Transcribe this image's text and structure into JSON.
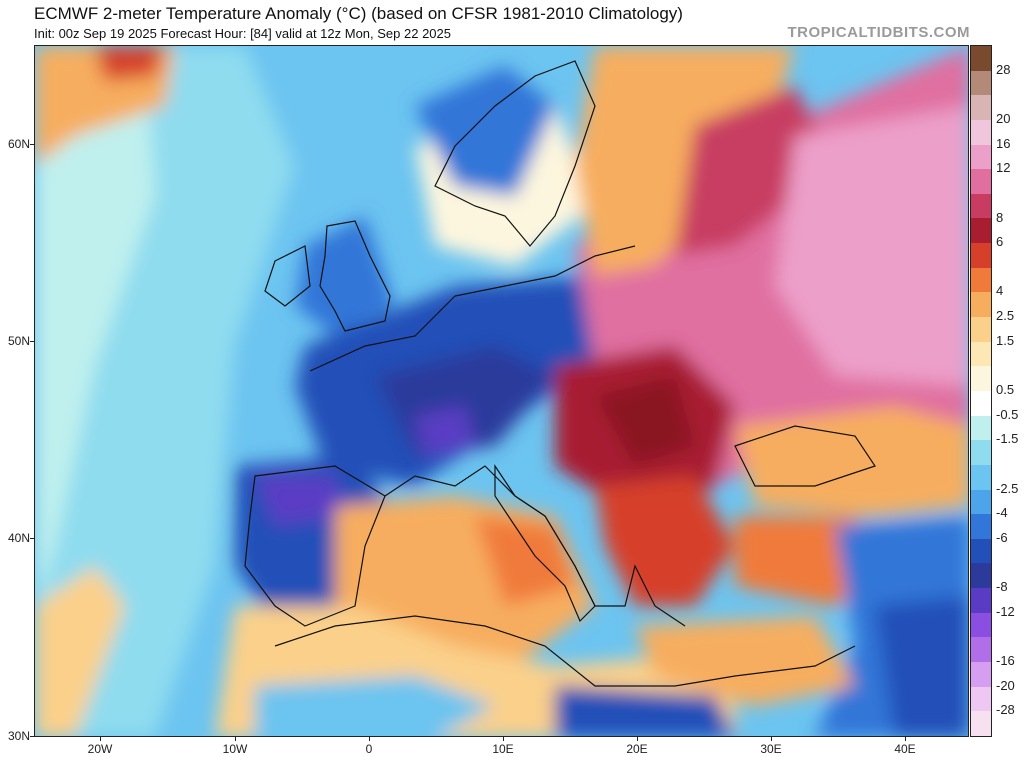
{
  "title": "ECMWF 2-meter Temperature Anomaly (°C) (based on CFSR 1981-2010 Climatology)",
  "subtitle": "Init: 00z Sep 19 2025   Forecast Hour: [84]   valid at 12z Mon, Sep 22 2025",
  "watermark": "TROPICALTIDBITS.COM",
  "map": {
    "lat_labels": [
      "60N",
      "50N",
      "40N",
      "30N"
    ],
    "lon_labels": [
      "20W",
      "10W",
      "0",
      "10E",
      "20E",
      "30E",
      "40E"
    ]
  },
  "colorbar": {
    "labels": [
      "28",
      "20",
      "16",
      "12",
      "8",
      "6",
      "4",
      "2.5",
      "1.5",
      "0.5",
      "-0.5",
      "-1.5",
      "-2.5",
      "-4",
      "-6",
      "-8",
      "-12",
      "-16",
      "-20",
      "-28"
    ],
    "colors": [
      "#7a4a2e",
      "#b38a78",
      "#d9b4b4",
      "#f0c6dc",
      "#ec9fc9",
      "#e06fa0",
      "#c83c62",
      "#a81e30",
      "#d6402a",
      "#f07a3a",
      "#f7ad5e",
      "#fbd08a",
      "#fde7b4",
      "#fdf6de",
      "#ffffff",
      "#bff0ee",
      "#8fdcef",
      "#6cc4f0",
      "#4ea4ea",
      "#3176d8",
      "#2350b8",
      "#2c3a9c",
      "#5a3cc4",
      "#8a4ee0",
      "#b06ee8",
      "#d69ef0",
      "#eec8f2",
      "#f7e0f0"
    ]
  }
}
